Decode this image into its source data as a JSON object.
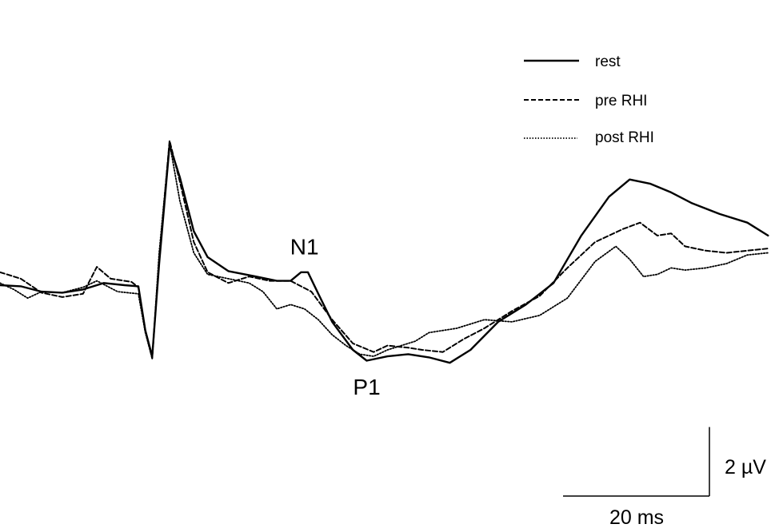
{
  "chart_data": {
    "type": "line",
    "title": "",
    "xlabel": "",
    "ylabel": "",
    "grid": false,
    "legend_position": "top-right",
    "xlim": [
      0,
      112
    ],
    "ylim": [
      -6,
      6
    ],
    "x_unit": "ms",
    "y_unit": "µV",
    "series": [
      {
        "name": "rest",
        "style": "solid",
        "points": [
          [
            0,
            0.0
          ],
          [
            3,
            -0.05
          ],
          [
            6,
            -0.3
          ],
          [
            9,
            -0.35
          ],
          [
            12,
            -0.2
          ],
          [
            15,
            0.1
          ],
          [
            18,
            0.0
          ],
          [
            20,
            -0.05
          ],
          [
            21,
            -2.1
          ],
          [
            22,
            -3.3
          ],
          [
            23,
            1.0
          ],
          [
            24.5,
            6.5
          ],
          [
            26,
            5.0
          ],
          [
            28,
            2.5
          ],
          [
            30,
            1.3
          ],
          [
            33,
            0.65
          ],
          [
            37,
            0.4
          ],
          [
            40,
            0.2
          ],
          [
            42,
            0.2
          ],
          [
            43.5,
            0.6
          ],
          [
            44.5,
            0.6
          ],
          [
            46,
            -0.4
          ],
          [
            48,
            -1.7
          ],
          [
            51,
            -3.0
          ],
          [
            53,
            -3.5
          ],
          [
            56,
            -3.3
          ],
          [
            59,
            -3.2
          ],
          [
            62,
            -3.35
          ],
          [
            65,
            -3.6
          ],
          [
            68,
            -3.0
          ],
          [
            72,
            -1.7
          ],
          [
            76,
            -0.9
          ],
          [
            80,
            0.1
          ],
          [
            84,
            2.3
          ],
          [
            88,
            4.1
          ],
          [
            91,
            4.9
          ],
          [
            94,
            4.7
          ],
          [
            97,
            4.3
          ],
          [
            100,
            3.8
          ],
          [
            104,
            3.3
          ],
          [
            108,
            2.9
          ],
          [
            111,
            2.3
          ]
        ]
      },
      {
        "name": "pre RHI",
        "style": "dashed",
        "points": [
          [
            0,
            0.6
          ],
          [
            3,
            0.3
          ],
          [
            6,
            -0.35
          ],
          [
            9,
            -0.55
          ],
          [
            12,
            -0.4
          ],
          [
            14,
            0.85
          ],
          [
            16,
            0.3
          ],
          [
            19,
            0.15
          ],
          [
            20,
            -0.1
          ],
          [
            21,
            -2.1
          ],
          [
            22,
            -3.4
          ],
          [
            23,
            1.2
          ],
          [
            24.5,
            6.7
          ],
          [
            26,
            4.8
          ],
          [
            28,
            2.0
          ],
          [
            30,
            0.6
          ],
          [
            33,
            0.1
          ],
          [
            36,
            0.4
          ],
          [
            39,
            0.2
          ],
          [
            42,
            0.2
          ],
          [
            45,
            -0.3
          ],
          [
            48,
            -1.6
          ],
          [
            51,
            -2.7
          ],
          [
            54,
            -3.1
          ],
          [
            56,
            -2.8
          ],
          [
            59,
            -2.9
          ],
          [
            61,
            -3.0
          ],
          [
            64,
            -3.1
          ],
          [
            67,
            -2.5
          ],
          [
            70,
            -2.0
          ],
          [
            74,
            -1.2
          ],
          [
            78,
            -0.5
          ],
          [
            82,
            0.8
          ],
          [
            86,
            2.0
          ],
          [
            90,
            2.6
          ],
          [
            92.5,
            2.9
          ],
          [
            95,
            2.3
          ],
          [
            97,
            2.4
          ],
          [
            99,
            1.8
          ],
          [
            102,
            1.6
          ],
          [
            105,
            1.5
          ],
          [
            108,
            1.6
          ],
          [
            111,
            1.7
          ]
        ]
      },
      {
        "name": "post RHI",
        "style": "dotted",
        "points": [
          [
            0,
            0.1
          ],
          [
            2,
            -0.2
          ],
          [
            4,
            -0.6
          ],
          [
            6,
            -0.3
          ],
          [
            9,
            -0.35
          ],
          [
            12,
            -0.1
          ],
          [
            14,
            0.2
          ],
          [
            17,
            -0.3
          ],
          [
            20,
            -0.4
          ],
          [
            21,
            -2.2
          ],
          [
            22,
            -3.4
          ],
          [
            23,
            1.5
          ],
          [
            24.5,
            6.6
          ],
          [
            26,
            3.9
          ],
          [
            28,
            1.5
          ],
          [
            30,
            0.5
          ],
          [
            33,
            0.3
          ],
          [
            36,
            0.1
          ],
          [
            38,
            -0.3
          ],
          [
            40,
            -1.1
          ],
          [
            42,
            -0.9
          ],
          [
            44,
            -1.1
          ],
          [
            46,
            -1.6
          ],
          [
            48,
            -2.3
          ],
          [
            50,
            -2.8
          ],
          [
            52,
            -3.2
          ],
          [
            54,
            -3.3
          ],
          [
            56,
            -3.0
          ],
          [
            60,
            -2.6
          ],
          [
            62,
            -2.2
          ],
          [
            66,
            -2.0
          ],
          [
            70,
            -1.6
          ],
          [
            74,
            -1.7
          ],
          [
            78,
            -1.4
          ],
          [
            82,
            -0.6
          ],
          [
            86,
            1.1
          ],
          [
            89,
            1.8
          ],
          [
            91,
            1.2
          ],
          [
            93,
            0.4
          ],
          [
            95,
            0.5
          ],
          [
            97,
            0.8
          ],
          [
            99,
            0.7
          ],
          [
            102,
            0.8
          ],
          [
            105,
            1.0
          ],
          [
            108,
            1.4
          ],
          [
            111,
            1.5
          ]
        ]
      }
    ],
    "annotations": [
      {
        "text": "N1",
        "x": 44,
        "y": 1.8
      },
      {
        "text": "P1",
        "x": 53,
        "y": -4.7
      }
    ],
    "scale_bars": {
      "time_label": "20 ms",
      "time_value": 20,
      "amplitude_label": "2 µV",
      "amplitude_value": 2
    }
  }
}
